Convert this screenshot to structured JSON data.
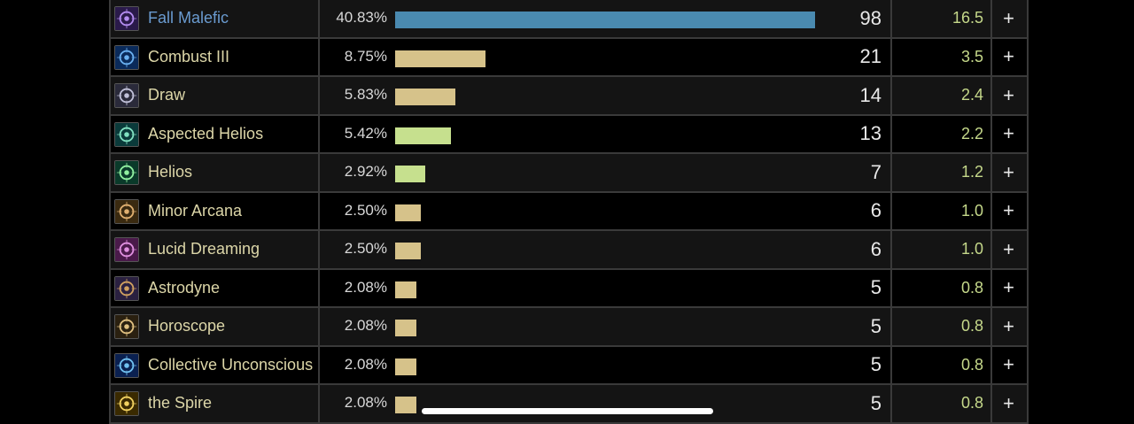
{
  "colors": {
    "bar_highlight": "#4a8ab0",
    "bar_default": "#d6c28a",
    "bar_heal": "#c6e08e"
  },
  "abilities": [
    {
      "name": "Fall Malefic",
      "pct": "40.83%",
      "fraction": 0.4083,
      "count": "98",
      "value": "16.5",
      "plus": "+",
      "icon": "fall-malefic-icon",
      "bar": "bar_highlight",
      "highlight": true
    },
    {
      "name": "Combust III",
      "pct": "8.75%",
      "fraction": 0.0875,
      "count": "21",
      "value": "3.5",
      "plus": "+",
      "icon": "combust-icon",
      "bar": "bar_default"
    },
    {
      "name": "Draw",
      "pct": "5.83%",
      "fraction": 0.0583,
      "count": "14",
      "value": "2.4",
      "plus": "+",
      "icon": "draw-icon",
      "bar": "bar_default"
    },
    {
      "name": "Aspected Helios",
      "pct": "5.42%",
      "fraction": 0.0542,
      "count": "13",
      "value": "2.2",
      "plus": "+",
      "icon": "aspected-helios-icon",
      "bar": "bar_heal"
    },
    {
      "name": "Helios",
      "pct": "2.92%",
      "fraction": 0.0292,
      "count": "7",
      "value": "1.2",
      "plus": "+",
      "icon": "helios-icon",
      "bar": "bar_heal"
    },
    {
      "name": "Minor Arcana",
      "pct": "2.50%",
      "fraction": 0.025,
      "count": "6",
      "value": "1.0",
      "plus": "+",
      "icon": "minor-arcana-icon",
      "bar": "bar_default"
    },
    {
      "name": "Lucid Dreaming",
      "pct": "2.50%",
      "fraction": 0.025,
      "count": "6",
      "value": "1.0",
      "plus": "+",
      "icon": "lucid-dreaming-icon",
      "bar": "bar_default"
    },
    {
      "name": "Astrodyne",
      "pct": "2.08%",
      "fraction": 0.0208,
      "count": "5",
      "value": "0.8",
      "plus": "+",
      "icon": "astrodyne-icon",
      "bar": "bar_default"
    },
    {
      "name": "Horoscope",
      "pct": "2.08%",
      "fraction": 0.0208,
      "count": "5",
      "value": "0.8",
      "plus": "+",
      "icon": "horoscope-icon",
      "bar": "bar_default"
    },
    {
      "name": "Collective Unconscious",
      "pct": "2.08%",
      "fraction": 0.0208,
      "count": "5",
      "value": "0.8",
      "plus": "+",
      "icon": "collective-unconscious-icon",
      "bar": "bar_default"
    },
    {
      "name": "the Spire",
      "pct": "2.08%",
      "fraction": 0.0208,
      "count": "5",
      "value": "0.8",
      "plus": "+",
      "icon": "the-spire-icon",
      "bar": "bar_default"
    }
  ]
}
